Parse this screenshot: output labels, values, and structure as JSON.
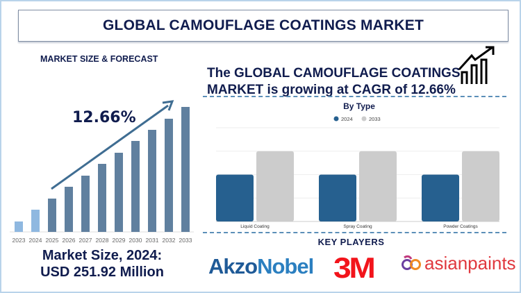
{
  "header": {
    "title": "GLOBAL CAMOUFLAGE COATINGS MARKET"
  },
  "left": {
    "subtitle": "MARKET SIZE & FORECAST",
    "cagr_label": "12.66%",
    "market_size_line1": "Market Size, 2024:",
    "market_size_line2": "USD 251.92 Million"
  },
  "right": {
    "headline_line1": "The GLOBAL CAMOUFLAGE COATINGS",
    "headline_line2": "MARKET is growing at CAGR of 12.66%",
    "icon": "growth-chart-icon",
    "key_players_title": "KEY PLAYERS",
    "key_players": [
      "AkzoNobel",
      "3M",
      "asianpaints"
    ]
  },
  "chart_data": [
    {
      "type": "bar",
      "title": "",
      "categories": [
        "2023",
        "2024",
        "2025",
        "2026",
        "2027",
        "2028",
        "2029",
        "2030",
        "2031",
        "2032",
        "2033"
      ],
      "values": [
        15,
        32,
        48,
        65,
        81,
        98,
        114,
        131,
        147,
        163,
        180
      ],
      "colors": {
        "historic": "#8fb8e0",
        "forecast": "#60809f"
      },
      "historic_categories": [
        "2023",
        "2024"
      ],
      "annotation": "12.66%",
      "grid": false
    },
    {
      "type": "bar",
      "title": "By Type",
      "categories": [
        "Liquid Coating",
        "Spray Coating",
        "Powder Coatings"
      ],
      "series": [
        {
          "name": "2024",
          "values": [
            2,
            2,
            2
          ],
          "color": "#26608f"
        },
        {
          "name": "2033",
          "values": [
            3,
            3,
            3
          ],
          "color": "#cccccc"
        }
      ],
      "ylim": [
        0,
        4
      ],
      "grid": true,
      "legend": "top"
    }
  ]
}
